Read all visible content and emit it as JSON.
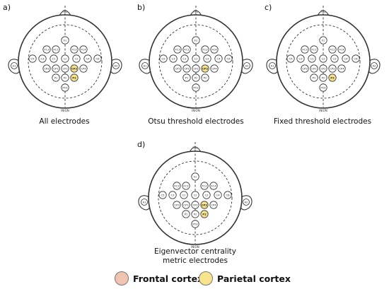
{
  "colors": {
    "frontal": "#f0c4ae",
    "parietal": "#f7e48c",
    "stroke": "#333333"
  },
  "head_labels": {
    "front": "Fpz",
    "back": "INION",
    "left_ear": "A1",
    "right_ear": "A2"
  },
  "electrodes": [
    {
      "id": "Fz"
    },
    {
      "id": "FC1"
    },
    {
      "id": "FC2"
    },
    {
      "id": "FC3"
    },
    {
      "id": "FC4"
    },
    {
      "id": "C5"
    },
    {
      "id": "C3"
    },
    {
      "id": "C1"
    },
    {
      "id": "Cz"
    },
    {
      "id": "C2"
    },
    {
      "id": "C4"
    },
    {
      "id": "C6"
    },
    {
      "id": "CP3"
    },
    {
      "id": "CP1"
    },
    {
      "id": "CPz"
    },
    {
      "id": "CP2"
    },
    {
      "id": "CP4"
    },
    {
      "id": "P1"
    },
    {
      "id": "Pz"
    },
    {
      "id": "P2"
    },
    {
      "id": "POz"
    }
  ],
  "panels": [
    {
      "letter": "a)",
      "caption": [
        "All electrodes"
      ],
      "highlight": {
        "CP2": "parietal",
        "P2": "parietal"
      }
    },
    {
      "letter": "b)",
      "caption": [
        "Otsu threshold electrodes"
      ],
      "highlight": {
        "CP2": "parietal"
      }
    },
    {
      "letter": "c)",
      "caption": [
        "Fixed threshold electrodes"
      ],
      "highlight": {
        "P2": "parietal"
      }
    },
    {
      "letter": "d)",
      "caption": [
        "Eigenvector centrality",
        "metric electrodes"
      ],
      "highlight": {
        "CP2": "parietal",
        "P2": "parietal"
      }
    }
  ],
  "legend": [
    {
      "label": "Frontal cortex",
      "color": "#f0c4ae"
    },
    {
      "label": "Parietal cortex",
      "color": "#f7e48c"
    }
  ]
}
